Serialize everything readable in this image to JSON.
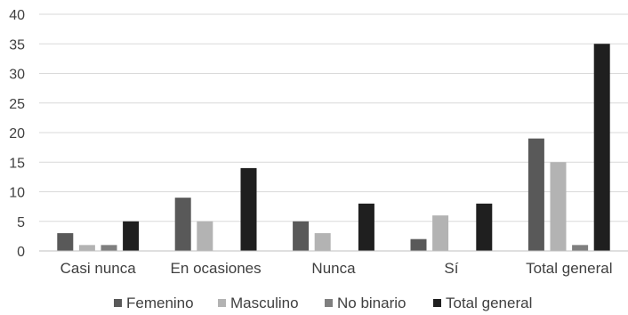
{
  "chart_data": {
    "type": "bar",
    "categories": [
      "Casi nunca",
      "En ocasiones",
      "Nunca",
      "Sí",
      "Total general"
    ],
    "series": [
      {
        "name": "Femenino",
        "values": [
          3,
          9,
          5,
          2,
          19
        ],
        "color": "#595959"
      },
      {
        "name": "Masculino",
        "values": [
          1,
          5,
          3,
          6,
          15
        ],
        "color": "#b3b3b3"
      },
      {
        "name": "No binario",
        "values": [
          1,
          0,
          0,
          0,
          1
        ],
        "color": "#7f7f7f"
      },
      {
        "name": "Total general",
        "values": [
          5,
          14,
          8,
          8,
          35
        ],
        "color": "#1f1f1f"
      }
    ],
    "yticks": [
      "0",
      "5",
      "10",
      "15",
      "20",
      "25",
      "30",
      "35",
      "40"
    ],
    "ylim": [
      0,
      40
    ],
    "grid": true,
    "legend": "bottom"
  }
}
